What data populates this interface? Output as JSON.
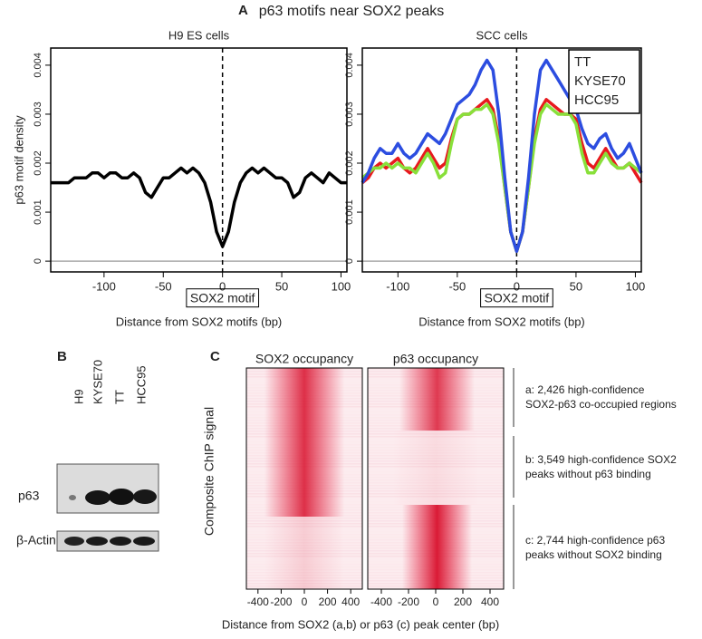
{
  "figure": {
    "title": "p63 motifs near SOX2 peaks",
    "panel_labels": [
      "A",
      "B",
      "C"
    ]
  },
  "chart_data": [
    {
      "type": "line",
      "title": "H9 ES cells",
      "y_label": "p63 motif density",
      "x_label": "Distance from SOX2 motifs (bp)",
      "annotation": "SOX2 motif",
      "x": [
        -145,
        -140,
        -135,
        -130,
        -125,
        -120,
        -115,
        -110,
        -105,
        -100,
        -95,
        -90,
        -85,
        -80,
        -75,
        -70,
        -65,
        -60,
        -55,
        -50,
        -45,
        -40,
        -35,
        -30,
        -25,
        -20,
        -15,
        -10,
        -5,
        0,
        5,
        10,
        15,
        20,
        25,
        30,
        35,
        40,
        45,
        50,
        55,
        60,
        65,
        70,
        75,
        80,
        85,
        90,
        95,
        100,
        105
      ],
      "values": [
        0.0016,
        0.0016,
        0.0016,
        0.0016,
        0.0017,
        0.0017,
        0.0017,
        0.0018,
        0.0018,
        0.0017,
        0.0018,
        0.0018,
        0.0017,
        0.0017,
        0.0018,
        0.0017,
        0.0014,
        0.0013,
        0.0015,
        0.0017,
        0.0017,
        0.0018,
        0.0019,
        0.0018,
        0.0019,
        0.0018,
        0.0016,
        0.0012,
        0.0006,
        0.0003,
        0.0006,
        0.0012,
        0.0016,
        0.0018,
        0.0019,
        0.0018,
        0.0019,
        0.0018,
        0.0017,
        0.0017,
        0.0016,
        0.0013,
        0.0014,
        0.0017,
        0.0018,
        0.0017,
        0.0016,
        0.0018,
        0.0017,
        0.0016,
        0.0016
      ],
      "color": "#000000",
      "xlim": [
        -145,
        105
      ],
      "xticks": [
        -100,
        -50,
        0,
        50,
        100
      ],
      "ylim": [
        -0.00022,
        0.00435
      ],
      "yticks": [
        0,
        0.001,
        0.002,
        0.003,
        0.004
      ]
    },
    {
      "type": "line",
      "title": "SCC cells",
      "x_label": "Distance from SOX2 motifs (bp)",
      "annotation": "SOX2 motif",
      "legend": "upper right",
      "x": [
        -130,
        -125,
        -120,
        -115,
        -110,
        -105,
        -100,
        -95,
        -90,
        -85,
        -80,
        -75,
        -70,
        -65,
        -60,
        -55,
        -50,
        -45,
        -40,
        -35,
        -30,
        -25,
        -20,
        -15,
        -10,
        -5,
        0,
        5,
        10,
        15,
        20,
        25,
        30,
        35,
        40,
        45,
        50,
        55,
        60,
        65,
        70,
        75,
        80,
        85,
        90,
        95,
        100,
        105
      ],
      "series": [
        {
          "name": "TT",
          "color": "#e8191e",
          "values": [
            0.0016,
            0.0017,
            0.0019,
            0.002,
            0.0019,
            0.002,
            0.0021,
            0.0019,
            0.0018,
            0.0019,
            0.0021,
            0.0023,
            0.0021,
            0.0019,
            0.002,
            0.0025,
            0.0029,
            0.003,
            0.003,
            0.0031,
            0.0032,
            0.0033,
            0.0031,
            0.0025,
            0.0015,
            0.0006,
            0.0002,
            0.0006,
            0.0015,
            0.0025,
            0.0031,
            0.0033,
            0.0032,
            0.0031,
            0.003,
            0.003,
            0.0029,
            0.0024,
            0.002,
            0.0019,
            0.0021,
            0.0023,
            0.0021,
            0.0019,
            0.0019,
            0.002,
            0.0018,
            0.0016
          ]
        },
        {
          "name": "KYSE70",
          "color": "#88e03a",
          "values": [
            0.0017,
            0.0018,
            0.0019,
            0.0019,
            0.002,
            0.0019,
            0.002,
            0.0019,
            0.0019,
            0.0018,
            0.002,
            0.0022,
            0.002,
            0.0017,
            0.0018,
            0.0024,
            0.0029,
            0.003,
            0.003,
            0.0031,
            0.0031,
            0.0032,
            0.003,
            0.0024,
            0.0015,
            0.0006,
            0.0002,
            0.0006,
            0.0015,
            0.0024,
            0.003,
            0.0032,
            0.0031,
            0.003,
            0.003,
            0.003,
            0.0028,
            0.0022,
            0.0018,
            0.0018,
            0.002,
            0.0022,
            0.002,
            0.0019,
            0.0019,
            0.002,
            0.0019,
            0.0018
          ]
        },
        {
          "name": "HCC95",
          "color": "#2c4de0",
          "values": [
            0.0016,
            0.0018,
            0.0021,
            0.0023,
            0.0022,
            0.0022,
            0.0024,
            0.0022,
            0.0021,
            0.0022,
            0.0024,
            0.0026,
            0.0025,
            0.0024,
            0.0026,
            0.0029,
            0.0032,
            0.0033,
            0.0034,
            0.0036,
            0.0039,
            0.0041,
            0.0039,
            0.003,
            0.0017,
            0.0006,
            0.0002,
            0.0006,
            0.0017,
            0.003,
            0.0039,
            0.0041,
            0.0039,
            0.0037,
            0.0035,
            0.0033,
            0.0031,
            0.0027,
            0.0024,
            0.0023,
            0.0025,
            0.0026,
            0.0023,
            0.0021,
            0.0022,
            0.0024,
            0.0021,
            0.0018
          ]
        }
      ],
      "xlim": [
        -130,
        105
      ],
      "xticks": [
        -100,
        -50,
        0,
        50,
        100
      ],
      "ylim": [
        -0.00022,
        0.00435
      ],
      "yticks": [
        0,
        0.001,
        0.002,
        0.003,
        0.004
      ]
    },
    {
      "type": "heatmap",
      "title": "SOX2 occupancy",
      "xlim": [
        -500,
        500
      ],
      "xticks": [
        -400,
        -200,
        0,
        200,
        400
      ]
    },
    {
      "type": "heatmap",
      "title": "p63 occupancy",
      "xlim": [
        -500,
        500
      ],
      "xticks": [
        -400,
        -200,
        0,
        200,
        400
      ]
    }
  ],
  "blot": {
    "lanes": [
      "H9",
      "KYSE70",
      "TT",
      "HCC95"
    ],
    "rows": [
      "p63",
      "β-Actin"
    ]
  },
  "heatmap_panel": {
    "y_label": "Composite ChIP signal",
    "x_label": "Distance from SOX2 (a,b) or p63 (c) peak center (bp)",
    "groups": [
      [
        "a: 2,426 high-confidence",
        "SOX2-p63 co-occupied regions"
      ],
      [
        "b: 3,549 high-confidence SOX2",
        "peaks without p63 binding"
      ],
      [
        "c: 2,744 high-confidence p63",
        "peaks without SOX2 binding"
      ]
    ]
  }
}
